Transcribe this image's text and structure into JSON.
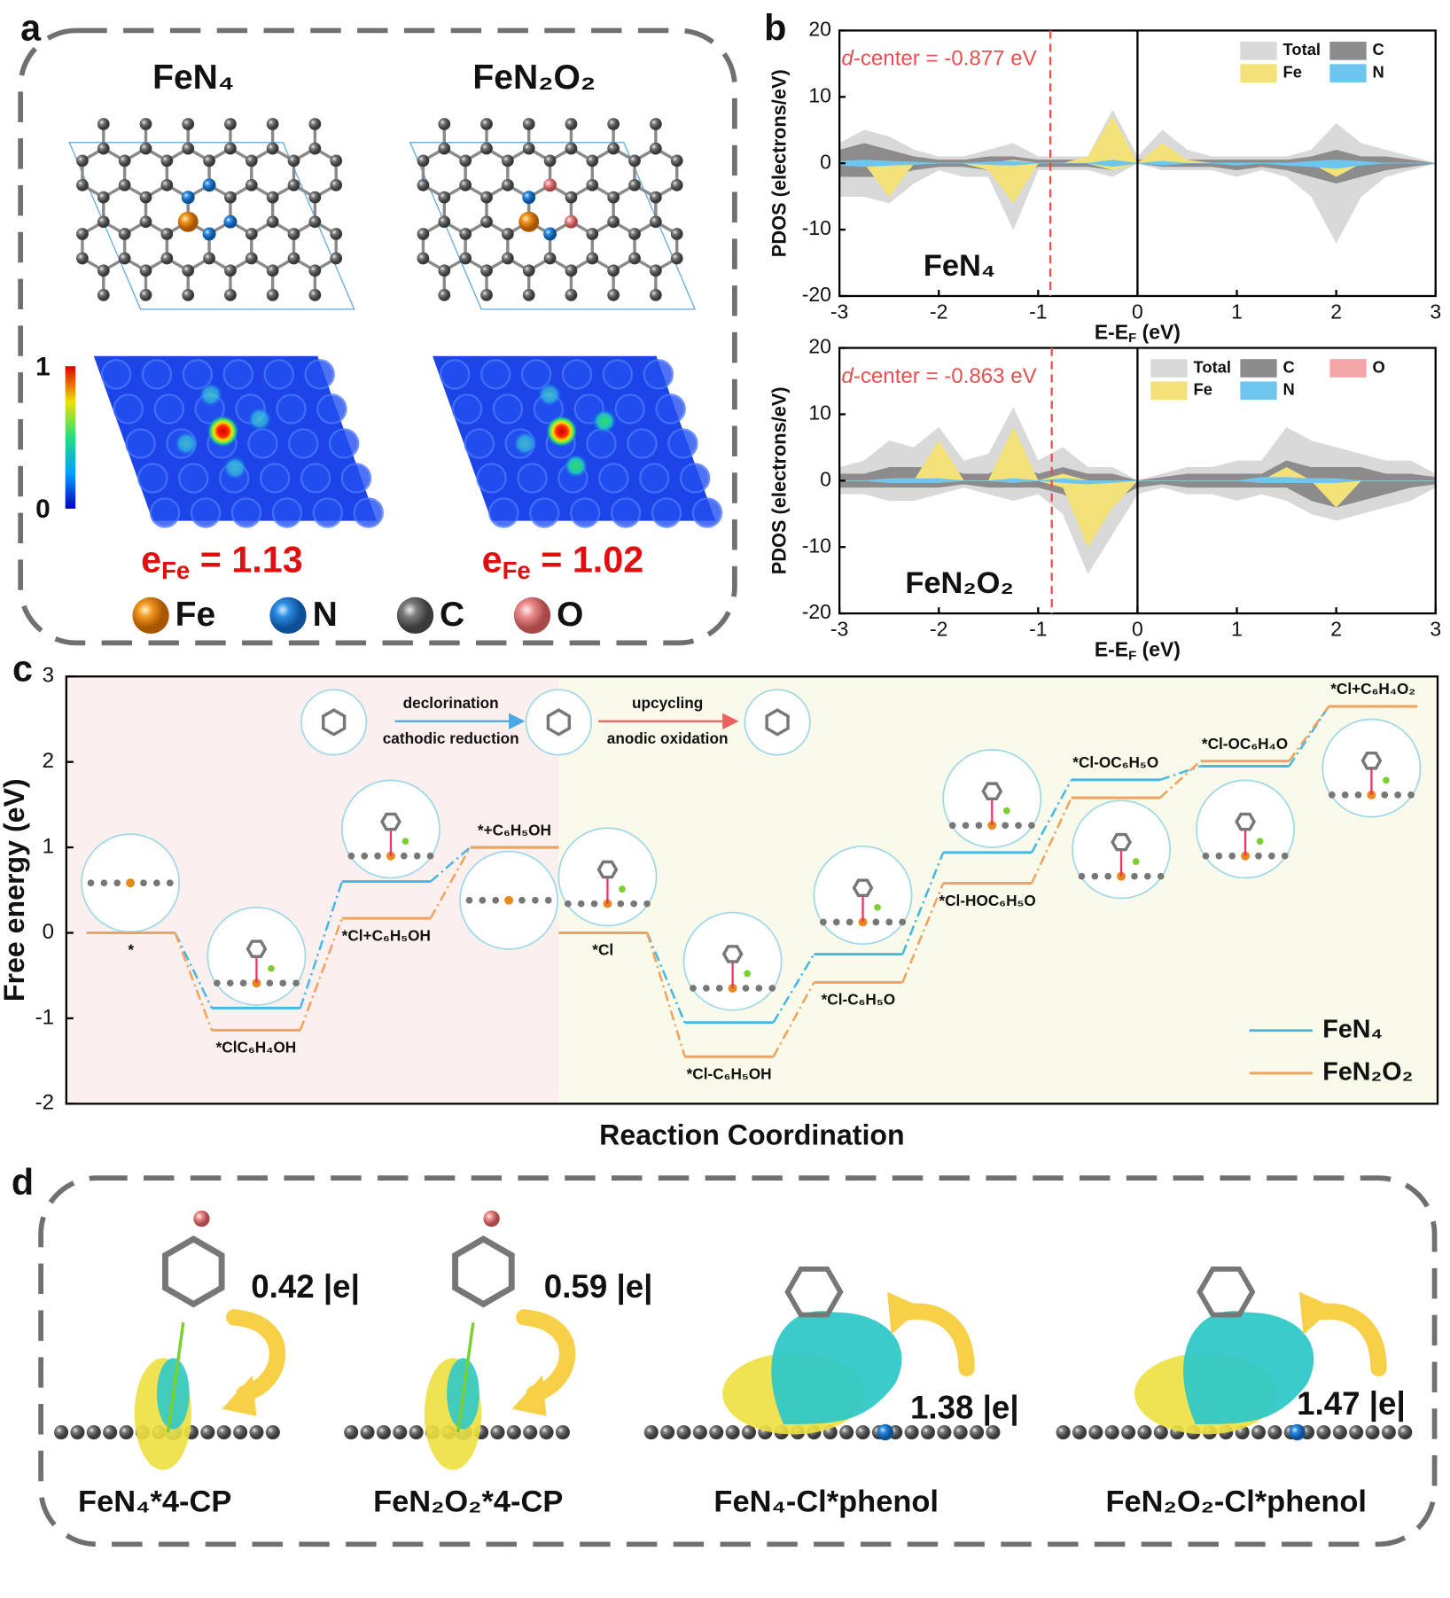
{
  "panel_labels": [
    "a",
    "b",
    "c",
    "d"
  ],
  "panel_a": {
    "structures": [
      {
        "title": "FeN₄",
        "charge": {
          "symbol": "e",
          "subscript": "Fe",
          "value": "= 1.13"
        }
      },
      {
        "title": "FeN₂O₂",
        "charge": {
          "symbol": "e",
          "subscript": "Fe",
          "value": "= 1.02"
        }
      }
    ],
    "colorbar_ticks": [
      "1",
      "0"
    ],
    "atoms": [
      {
        "name": "Fe",
        "color": "#e8891c"
      },
      {
        "name": "N",
        "color": "#1f7fd8"
      },
      {
        "name": "C",
        "color": "#6e6e6e"
      },
      {
        "name": "O",
        "color": "#e88a8a"
      }
    ]
  },
  "chart_data": [
    {
      "type": "area",
      "label": "FeN₄",
      "annotation": [
        "d",
        "-center = -0.877 eV"
      ],
      "d_center": -0.877,
      "ylabel": "PDOS (electrons/eV)",
      "xlabel": [
        "E-E",
        "F",
        " (eV)"
      ],
      "x": [
        -3,
        -2.75,
        -2.5,
        -2.25,
        -2,
        -1.75,
        -1.5,
        -1.25,
        -1,
        -0.75,
        -0.5,
        -0.25,
        0,
        0.25,
        0.5,
        0.75,
        1,
        1.25,
        1.5,
        1.75,
        2,
        2.25,
        2.5,
        2.75,
        3
      ],
      "xlim": [
        -3,
        3
      ],
      "xticks": [
        -3,
        -2,
        -1,
        0,
        1,
        2,
        3
      ],
      "ylim": [
        -20,
        20
      ],
      "yticks": [
        -20,
        -10,
        0,
        10,
        20
      ],
      "series": [
        {
          "name": "Total",
          "color": "#d9d9d9",
          "spin_up": [
            3,
            5,
            4,
            2,
            1,
            1,
            2,
            3,
            1,
            1,
            1,
            8,
            1,
            5,
            2,
            1,
            1,
            1,
            1,
            2,
            6,
            3,
            2,
            1,
            0
          ],
          "spin_down": [
            -5,
            -5,
            -6,
            -3,
            -1,
            -2,
            -2,
            -10,
            -1,
            -1,
            -1,
            -2,
            0,
            -1,
            -1,
            -1,
            -2,
            -1,
            -2,
            -5,
            -12,
            -5,
            -2,
            -1,
            0
          ]
        },
        {
          "name": "C",
          "color": "#8c8c8c",
          "spin_up": [
            2,
            3,
            2,
            1,
            0.5,
            0.5,
            1,
            1,
            0.5,
            0.5,
            0.5,
            2,
            0.5,
            1,
            0.5,
            0.5,
            0.5,
            0.5,
            0.5,
            1,
            2,
            1,
            1,
            0.5,
            0
          ],
          "spin_down": [
            -2,
            -2,
            -2,
            -1,
            -0.5,
            -0.5,
            -1,
            -2,
            -0.5,
            -0.5,
            -0.5,
            -1,
            0,
            -0.5,
            -0.5,
            -0.5,
            -1,
            -0.5,
            -1,
            -2,
            -3,
            -2,
            -1,
            -0.5,
            0
          ]
        },
        {
          "name": "Fe",
          "color": "#f3e27a",
          "spin_up": [
            0,
            0,
            0,
            0,
            0,
            0,
            0,
            0.5,
            0,
            0,
            1,
            7,
            0,
            3,
            0.5,
            0,
            0,
            0,
            0,
            0,
            0,
            0,
            0,
            0,
            0
          ],
          "spin_down": [
            0,
            0,
            -5,
            0,
            0,
            0,
            -1,
            -6,
            0,
            0,
            0,
            -1,
            0,
            0,
            0,
            0,
            0,
            0,
            0,
            0,
            -2,
            0,
            0,
            0,
            0
          ]
        },
        {
          "name": "N",
          "color": "#6ec6f0",
          "spin_up": [
            0.3,
            0.5,
            0.3,
            0.2,
            0,
            0,
            0.2,
            0.3,
            0,
            0,
            0,
            0.5,
            0,
            0.3,
            0,
            0,
            0,
            0,
            0,
            0.3,
            0.5,
            0.3,
            0,
            0,
            0
          ],
          "spin_down": [
            -0.3,
            -0.5,
            -0.3,
            -0.2,
            0,
            0,
            -0.2,
            -0.3,
            0,
            0,
            0,
            -0.5,
            0,
            -0.3,
            0,
            0,
            -0.3,
            0,
            -0.3,
            -0.5,
            -0.8,
            -0.3,
            0,
            0,
            0
          ]
        }
      ]
    },
    {
      "type": "area",
      "label": "FeN₂O₂",
      "annotation": [
        "d",
        "-center = -0.863 eV"
      ],
      "d_center": -0.863,
      "ylabel": "PDOS (electrons/eV)",
      "xlabel": [
        "E-E",
        "F",
        " (eV)"
      ],
      "x": [
        -3,
        -2.75,
        -2.5,
        -2.25,
        -2,
        -1.75,
        -1.5,
        -1.25,
        -1,
        -0.75,
        -0.5,
        -0.25,
        0,
        0.25,
        0.5,
        0.75,
        1,
        1.25,
        1.5,
        1.75,
        2,
        2.25,
        2.5,
        2.75,
        3
      ],
      "xlim": [
        -3,
        3
      ],
      "xticks": [
        -3,
        -2,
        -1,
        0,
        1,
        2,
        3
      ],
      "ylim": [
        -20,
        20
      ],
      "yticks": [
        -20,
        -10,
        0,
        10,
        20
      ],
      "series": [
        {
          "name": "Total",
          "color": "#d9d9d9",
          "spin_up": [
            2,
            3,
            6,
            5,
            8,
            3,
            4,
            11,
            3,
            5,
            2,
            2,
            0,
            1,
            2,
            2,
            3,
            3,
            8,
            6,
            5,
            4,
            3,
            3,
            1
          ],
          "spin_down": [
            -2,
            -2,
            -3,
            -3,
            -2,
            -1,
            -2,
            -3,
            -2,
            -5,
            -14,
            -8,
            -2,
            -1,
            -2,
            -2,
            -3,
            -2,
            -3,
            -5,
            -6,
            -5,
            -4,
            -3,
            -1
          ]
        },
        {
          "name": "C",
          "color": "#8c8c8c",
          "spin_up": [
            1,
            1,
            2,
            2,
            2,
            1,
            1,
            3,
            1,
            2,
            1,
            1,
            0,
            0.5,
            1,
            1,
            1,
            1,
            3,
            2,
            2,
            2,
            1,
            1,
            0.5
          ],
          "spin_down": [
            -1,
            -1,
            -1,
            -1,
            -1,
            -0.5,
            -1,
            -1,
            -1,
            -2,
            -4,
            -3,
            -1,
            -0.5,
            -1,
            -1,
            -1,
            -1,
            -1,
            -3,
            -4,
            -3,
            -2,
            -1,
            -0.5
          ]
        },
        {
          "name": "O",
          "color": "#f4a6a6",
          "spin_up": [
            0,
            0,
            0.3,
            0.3,
            0.5,
            0,
            0,
            0.3,
            0,
            0.5,
            0,
            0,
            0,
            0,
            0,
            0,
            0,
            0.3,
            0.5,
            0.3,
            0.3,
            0,
            0,
            0,
            0
          ],
          "spin_down": [
            0,
            0,
            -0.3,
            -0.3,
            -0.3,
            0,
            0,
            -0.3,
            0,
            -0.3,
            -0.5,
            -0.3,
            0,
            0,
            0,
            0,
            0,
            -0.3,
            -0.3,
            -0.3,
            -0.3,
            0,
            0,
            0,
            0
          ]
        },
        {
          "name": "Fe",
          "color": "#f3e27a",
          "spin_up": [
            0,
            0,
            0,
            0,
            6,
            0,
            0,
            8,
            0,
            1,
            0,
            0,
            0,
            0,
            0,
            0,
            0,
            0,
            2,
            0,
            0,
            0,
            0,
            0,
            0
          ],
          "spin_down": [
            0,
            0,
            0,
            0,
            0,
            0,
            0,
            0,
            0,
            -1,
            -10,
            -4,
            0,
            0,
            0,
            0,
            0,
            0,
            0,
            0,
            -4,
            0,
            0,
            0,
            0
          ]
        },
        {
          "name": "N",
          "color": "#6ec6f0",
          "spin_up": [
            0,
            0,
            0.3,
            0.3,
            0.3,
            0,
            0,
            0.3,
            0,
            0.3,
            0,
            0,
            0,
            0,
            0,
            0,
            0,
            0.5,
            0.5,
            0.3,
            0.3,
            0,
            0,
            0,
            0
          ],
          "spin_down": [
            0,
            0,
            -0.3,
            -0.3,
            -0.3,
            0,
            0,
            -0.3,
            0,
            -0.3,
            -0.5,
            -0.3,
            0,
            0,
            0,
            0,
            0,
            -0.3,
            -0.3,
            -0.3,
            -0.3,
            0,
            0,
            0,
            0
          ]
        }
      ]
    },
    {
      "type": "line",
      "ylabel": "Free energy (eV)",
      "xlabel": "Reaction Coordination",
      "categories": [
        "*",
        "*ClC₆H₄OH",
        "*Cl+C₆H₅OH",
        "*+C₆H₅OH",
        "*Cl",
        "*Cl-C₆H₅OH",
        "*Cl-C₆H₅O",
        "*Cl-HOC₆H₅O",
        "*Cl-OC₆H₅O",
        "*Cl-OC₆H₄O",
        "*Cl+C₆H₄O₂"
      ],
      "ylim": [
        -2,
        3
      ],
      "yticks": [
        -2,
        -1,
        0,
        1,
        2,
        3
      ],
      "series": [
        {
          "name": "FeN₄",
          "color": "#45b8e6",
          "values": [
            0,
            -0.88,
            0.6,
            1.0,
            0,
            -1.05,
            -0.25,
            0.94,
            1.79,
            1.95,
            2.65
          ]
        },
        {
          "name": "FeN₂O₂",
          "color": "#f2a25c",
          "values": [
            0,
            -1.14,
            0.17,
            1.0,
            0,
            -1.45,
            -0.58,
            0.58,
            1.58,
            2.01,
            2.65
          ]
        }
      ],
      "annotations": [
        "declorination",
        "cathodic reduction",
        "upcycling",
        "anodic oxidation"
      ]
    }
  ],
  "panel_d": {
    "items": [
      {
        "label": "FeN₄*4-CP",
        "charge": "0.42 |e|"
      },
      {
        "label": "FeN₂O₂*4-CP",
        "charge": "0.59 |e|"
      },
      {
        "label": "FeN₄-Cl*phenol",
        "charge": "1.38 |e|"
      },
      {
        "label": "FeN₂O₂-Cl*phenol",
        "charge": "1.47 |e|"
      }
    ]
  }
}
